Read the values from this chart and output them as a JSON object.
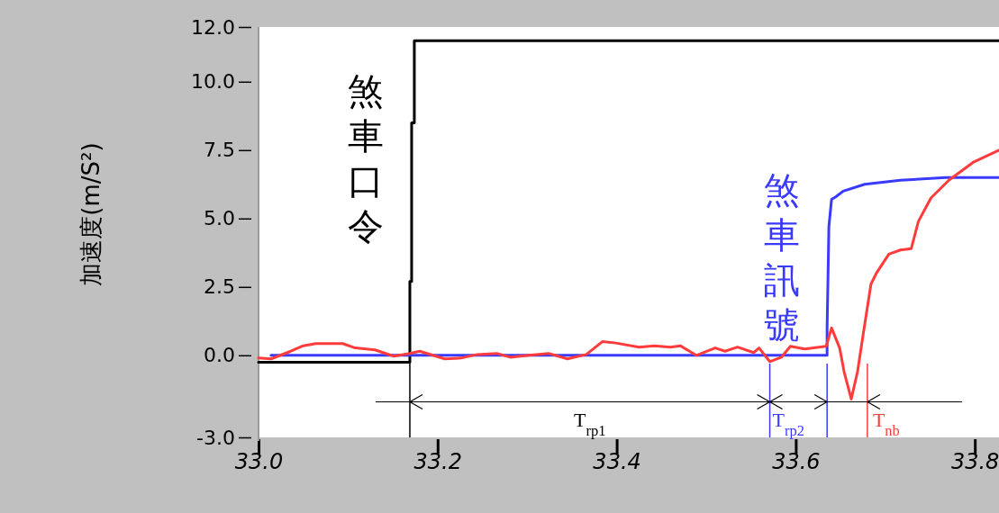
{
  "chart_data": {
    "type": "line",
    "ylabel": "加速度(m/S²)",
    "xlim": [
      33.0,
      33.827
    ],
    "ylim": [
      -3.0,
      12.0
    ],
    "xticks": [
      {
        "value": 33.0,
        "label": "33.0"
      },
      {
        "value": 33.2,
        "label": "33.2"
      },
      {
        "value": 33.4,
        "label": "33.4"
      },
      {
        "value": 33.6,
        "label": "33.6"
      },
      {
        "value": 33.8,
        "label": "33.8"
      }
    ],
    "yticks": [
      {
        "value": 12,
        "label": "12.0"
      },
      {
        "value": 10,
        "label": "10.0"
      },
      {
        "value": 7.5,
        "label": "7.5"
      },
      {
        "value": 5,
        "label": "5.0"
      },
      {
        "value": 2.5,
        "label": "2.5"
      },
      {
        "value": 0,
        "label": "0.0"
      },
      {
        "value": -3,
        "label": "-3.0"
      }
    ],
    "grid": false,
    "marker": "none",
    "line_style": "solid",
    "series": [
      {
        "name": "煞車口令",
        "color": "#000000",
        "x": [
          33.0,
          33.169,
          33.169,
          33.171,
          33.171,
          33.174,
          33.174,
          33.827
        ],
        "values": [
          -0.25,
          -0.25,
          2.7,
          2.7,
          8.5,
          8.5,
          11.5,
          11.5
        ]
      },
      {
        "name": "煞車訊號",
        "color": "#3a3aff",
        "x": [
          33.014,
          33.635,
          33.635,
          33.636,
          33.637,
          33.64,
          33.645,
          33.653,
          33.677,
          33.717,
          33.768,
          33.827
        ],
        "values": [
          0.0,
          0.0,
          1.0,
          2.8,
          4.7,
          5.7,
          5.8,
          6.0,
          6.25,
          6.4,
          6.5,
          6.5
        ]
      },
      {
        "color": "#ff3b3b",
        "x": [
          33.0,
          33.014,
          33.036,
          33.05,
          33.064,
          33.094,
          33.108,
          33.13,
          33.151,
          33.169,
          33.18,
          33.208,
          33.226,
          33.244,
          33.266,
          33.281,
          33.302,
          33.324,
          33.345,
          33.366,
          33.384,
          33.399,
          33.425,
          33.442,
          33.46,
          33.471,
          33.489,
          33.51,
          33.521,
          33.535,
          33.553,
          33.559,
          33.571,
          33.584,
          33.594,
          33.61,
          33.634,
          33.64,
          33.649,
          33.654,
          33.662,
          33.669,
          33.675,
          33.684,
          33.69,
          33.704,
          33.717,
          33.729,
          33.737,
          33.751,
          33.771,
          33.798,
          33.827
        ],
        "values": [
          -0.1,
          -0.13,
          0.15,
          0.35,
          0.43,
          0.43,
          0.27,
          0.2,
          -0.03,
          0.07,
          0.15,
          -0.13,
          -0.1,
          0.03,
          0.07,
          -0.07,
          0.0,
          0.07,
          -0.13,
          0.03,
          0.5,
          0.45,
          0.3,
          0.35,
          0.3,
          0.35,
          0.0,
          0.27,
          0.15,
          0.3,
          0.1,
          0.27,
          -0.23,
          -0.07,
          0.33,
          0.23,
          0.33,
          1.0,
          0.27,
          -0.6,
          -1.6,
          -0.6,
          0.7,
          2.6,
          3.0,
          3.7,
          3.85,
          3.9,
          4.9,
          5.75,
          6.4,
          7.05,
          7.5
        ]
      }
    ],
    "ref_lines": [
      {
        "axis": "x",
        "value": 33.169,
        "color": "#000000"
      },
      {
        "axis": "x",
        "value": 33.571,
        "color": "#3a3aff"
      },
      {
        "axis": "x",
        "value": 33.635,
        "color": "#3a3aff"
      },
      {
        "axis": "x",
        "value": 33.68,
        "color": "#ff3b3b"
      },
      {
        "axis": "y",
        "value": -1.7,
        "color": "#000000"
      }
    ],
    "annotations": [
      "T$_{rp1}$",
      "T$_{rp2}$",
      "T$_{nb}$"
    ]
  }
}
